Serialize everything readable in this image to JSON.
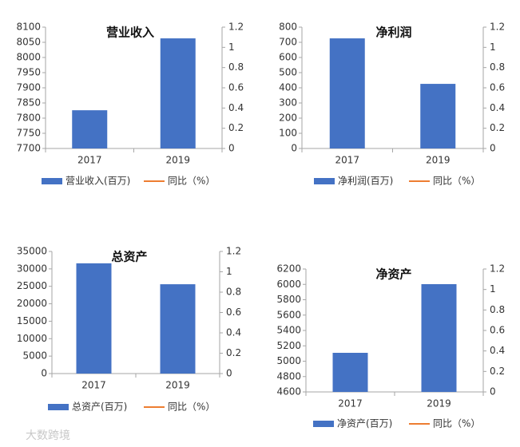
{
  "chart_data": [
    {
      "type": "bar",
      "title": "营业收入",
      "categories": [
        "2017",
        "2019"
      ],
      "series": [
        {
          "name": "营业收入(百万)",
          "color": "#4472c4",
          "values": [
            7826,
            8063
          ]
        },
        {
          "name": "同比（%）",
          "color": "#ed7d31",
          "values": [
            null,
            null
          ],
          "axis": "y2"
        }
      ],
      "ylim": [
        7700,
        8100
      ],
      "yticks": [
        7700,
        7750,
        7800,
        7850,
        7900,
        7950,
        8000,
        8050,
        8100
      ],
      "y2lim": [
        0,
        1.2
      ],
      "y2ticks": [
        0,
        0.2,
        0.4,
        0.6,
        0.8,
        1,
        1.2
      ]
    },
    {
      "type": "bar",
      "title": "净利润",
      "categories": [
        "2017",
        "2019"
      ],
      "series": [
        {
          "name": "净利润(百万)",
          "color": "#4472c4",
          "values": [
            726,
            426
          ]
        },
        {
          "name": "同比（%）",
          "color": "#ed7d31",
          "values": [
            null,
            null
          ],
          "axis": "y2"
        }
      ],
      "ylim": [
        0,
        800
      ],
      "yticks": [
        0,
        100,
        200,
        300,
        400,
        500,
        600,
        700,
        800
      ],
      "y2lim": [
        0,
        1.2
      ],
      "y2ticks": [
        0,
        0.2,
        0.4,
        0.6,
        0.8,
        1,
        1.2
      ]
    },
    {
      "type": "bar",
      "title": "总资产",
      "categories": [
        "2017",
        "2019"
      ],
      "series": [
        {
          "name": "总资产(百万)",
          "color": "#4472c4",
          "values": [
            31600,
            25600
          ]
        },
        {
          "name": "同比（%）",
          "color": "#ed7d31",
          "values": [
            null,
            null
          ],
          "axis": "y2"
        }
      ],
      "ylim": [
        0,
        35000
      ],
      "yticks": [
        0,
        5000,
        10000,
        15000,
        20000,
        25000,
        30000,
        35000
      ],
      "y2lim": [
        0,
        1.2
      ],
      "y2ticks": [
        0,
        0.2,
        0.4,
        0.6,
        0.8,
        1,
        1.2
      ]
    },
    {
      "type": "bar",
      "title": "净资产",
      "categories": [
        "2017",
        "2019"
      ],
      "series": [
        {
          "name": "净资产(百万)",
          "color": "#4472c4",
          "values": [
            5109,
            6003
          ]
        },
        {
          "name": "同比（%）",
          "color": "#ed7d31",
          "values": [
            null,
            null
          ],
          "axis": "y2"
        }
      ],
      "ylim": [
        4600,
        6200
      ],
      "yticks": [
        4600,
        4800,
        5000,
        5200,
        5400,
        5600,
        5800,
        6000,
        6200
      ],
      "y2lim": [
        0,
        1.2
      ],
      "y2ticks": [
        0,
        0.2,
        0.4,
        0.6,
        0.8,
        1,
        1.2
      ]
    }
  ],
  "watermark": "大数跨境"
}
